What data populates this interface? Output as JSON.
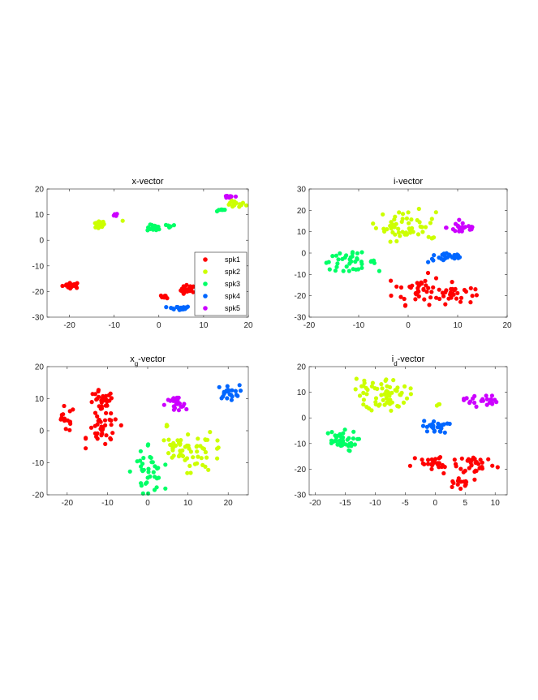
{
  "colors": {
    "spk1": "#ff0000",
    "spk2": "#ccff00",
    "spk3": "#00ff66",
    "spk4": "#0066ff",
    "spk5": "#cc00ff"
  },
  "chart_data": [
    {
      "type": "scatter",
      "title": "x-vector",
      "xlim": [
        -25,
        20
      ],
      "ylim": [
        -30,
        20
      ],
      "xticks": [
        -20,
        -10,
        0,
        10,
        20
      ],
      "yticks": [
        -30,
        -20,
        -10,
        0,
        10,
        20
      ],
      "grid": false,
      "legend": {
        "placement": "bottom-right",
        "entries": [
          "spk1",
          "spk2",
          "spk3",
          "spk4",
          "spk5"
        ]
      },
      "series": [
        {
          "name": "spk1",
          "clusters": [
            {
              "cx": -19.5,
              "cy": -17.5,
              "sx": 1.0,
              "sy": 0.6,
              "n": 22
            },
            {
              "cx": 6.5,
              "cy": -19.5,
              "sx": 0.8,
              "sy": 1.0,
              "n": 22
            },
            {
              "cx": 1.5,
              "cy": -22,
              "sx": 0.5,
              "sy": 0.3,
              "n": 10
            }
          ]
        },
        {
          "name": "spk2",
          "clusters": [
            {
              "cx": -13.5,
              "cy": 6,
              "sx": 0.7,
              "sy": 0.8,
              "n": 18
            },
            {
              "cx": 17,
              "cy": 14,
              "sx": 1.2,
              "sy": 0.7,
              "n": 20
            },
            {
              "cx": -8,
              "cy": 7.5,
              "sx": 0.2,
              "sy": 0.2,
              "n": 1
            }
          ]
        },
        {
          "name": "spk3",
          "clusters": [
            {
              "cx": -1,
              "cy": 4.8,
              "sx": 0.8,
              "sy": 0.6,
              "n": 14
            },
            {
              "cx": 2.5,
              "cy": 5.5,
              "sx": 0.6,
              "sy": 0.4,
              "n": 6
            },
            {
              "cx": 13.8,
              "cy": 12,
              "sx": 0.5,
              "sy": 0.5,
              "n": 8
            }
          ]
        },
        {
          "name": "spk4",
          "clusters": [
            {
              "cx": 4.5,
              "cy": -26.5,
              "sx": 1.3,
              "sy": 0.4,
              "n": 24
            }
          ]
        },
        {
          "name": "spk5",
          "clusters": [
            {
              "cx": 16,
              "cy": 17,
              "sx": 1.0,
              "sy": 0.3,
              "n": 10
            },
            {
              "cx": -9.5,
              "cy": 10,
              "sx": 0.4,
              "sy": 0.4,
              "n": 4
            }
          ]
        }
      ]
    },
    {
      "type": "scatter",
      "title": "i-vector",
      "xlim": [
        -20,
        20
      ],
      "ylim": [
        -30,
        30
      ],
      "xticks": [
        -20,
        -10,
        0,
        10,
        20
      ],
      "yticks": [
        -30,
        -20,
        -10,
        0,
        10,
        20,
        30
      ],
      "grid": false,
      "series": [
        {
          "name": "spk1",
          "clusters": [
            {
              "cx": 2,
              "cy": -17,
              "sx": 2.5,
              "sy": 3.5,
              "n": 40
            },
            {
              "cx": 9,
              "cy": -19,
              "sx": 2.2,
              "sy": 2.5,
              "n": 30
            }
          ]
        },
        {
          "name": "spk2",
          "clusters": [
            {
              "cx": -0.5,
              "cy": 13,
              "sx": 3.0,
              "sy": 3.5,
              "n": 50
            },
            {
              "cx": 5,
              "cy": 7,
              "sx": 0.5,
              "sy": 0.4,
              "n": 4
            }
          ]
        },
        {
          "name": "spk3",
          "clusters": [
            {
              "cx": -12,
              "cy": -4,
              "sx": 2.8,
              "sy": 2.0,
              "n": 40
            }
          ]
        },
        {
          "name": "spk4",
          "clusters": [
            {
              "cx": 8,
              "cy": -2,
              "sx": 2.0,
              "sy": 1.2,
              "n": 25
            }
          ]
        },
        {
          "name": "spk5",
          "clusters": [
            {
              "cx": 11,
              "cy": 12,
              "sx": 1.6,
              "sy": 1.6,
              "n": 25
            }
          ]
        }
      ]
    },
    {
      "type": "scatter",
      "title": "x",
      "title_subscript": "g",
      "title_suffix": "-vector",
      "xlim": [
        -25,
        25
      ],
      "ylim": [
        -20,
        20
      ],
      "xticks": [
        -20,
        -10,
        0,
        10,
        20
      ],
      "yticks": [
        -20,
        -10,
        0,
        10,
        20
      ],
      "grid": false,
      "series": [
        {
          "name": "spk1",
          "clusters": [
            {
              "cx": -20.5,
              "cy": 3.5,
              "sx": 1.2,
              "sy": 2.0,
              "n": 14
            },
            {
              "cx": -11.5,
              "cy": 8.5,
              "sx": 1.6,
              "sy": 2.0,
              "n": 30
            },
            {
              "cx": -11,
              "cy": 0,
              "sx": 2.0,
              "sy": 2.5,
              "n": 35
            }
          ]
        },
        {
          "name": "spk2",
          "clusters": [
            {
              "cx": 8,
              "cy": -5,
              "sx": 1.8,
              "sy": 2.0,
              "n": 30
            },
            {
              "cx": 14,
              "cy": -7,
              "sx": 2.5,
              "sy": 3.0,
              "n": 30
            },
            {
              "cx": 4.5,
              "cy": 1.5,
              "sx": 0.5,
              "sy": 0.3,
              "n": 3
            }
          ]
        },
        {
          "name": "spk3",
          "clusters": [
            {
              "cx": 0,
              "cy": -13,
              "sx": 2.0,
              "sy": 3.0,
              "n": 35
            },
            {
              "cx": 0,
              "cy": -4.5,
              "sx": 0.2,
              "sy": 0.3,
              "n": 2
            }
          ]
        },
        {
          "name": "spk4",
          "clusters": [
            {
              "cx": 20,
              "cy": 12,
              "sx": 1.4,
              "sy": 1.1,
              "n": 22
            }
          ]
        },
        {
          "name": "spk5",
          "clusters": [
            {
              "cx": 7,
              "cy": 8,
              "sx": 1.4,
              "sy": 1.4,
              "n": 24
            }
          ]
        }
      ]
    },
    {
      "type": "scatter",
      "title": "i",
      "title_subscript": "d",
      "title_suffix": "-vector",
      "xlim": [
        -21,
        12
      ],
      "ylim": [
        -30,
        20
      ],
      "xticks": [
        -20,
        -15,
        -10,
        -5,
        0,
        5,
        10
      ],
      "yticks": [
        -30,
        -20,
        -10,
        0,
        10,
        20
      ],
      "grid": false,
      "series": [
        {
          "name": "spk1",
          "clusters": [
            {
              "cx": 0,
              "cy": -18,
              "sx": 2.0,
              "sy": 2.0,
              "n": 30
            },
            {
              "cx": 7,
              "cy": -18,
              "sx": 1.6,
              "sy": 2.0,
              "n": 30
            },
            {
              "cx": 4.5,
              "cy": -25,
              "sx": 1.4,
              "sy": 1.2,
              "n": 14
            }
          ]
        },
        {
          "name": "spk2",
          "clusters": [
            {
              "cx": -8,
              "cy": 9,
              "sx": 1.8,
              "sy": 3.2,
              "n": 60
            },
            {
              "cx": -13,
              "cy": 12,
              "sx": 1.2,
              "sy": 3.0,
              "n": 8
            },
            {
              "cx": 0.5,
              "cy": 5,
              "sx": 0.2,
              "sy": 0.3,
              "n": 3
            }
          ]
        },
        {
          "name": "spk3",
          "clusters": [
            {
              "cx": -16,
              "cy": -9,
              "sx": 1.5,
              "sy": 2.0,
              "n": 40
            }
          ]
        },
        {
          "name": "spk4",
          "clusters": [
            {
              "cx": 0,
              "cy": -3.5,
              "sx": 1.1,
              "sy": 1.2,
              "n": 24
            }
          ]
        },
        {
          "name": "spk5",
          "clusters": [
            {
              "cx": 7.5,
              "cy": 7,
              "sx": 1.4,
              "sy": 1.2,
              "n": 24
            }
          ]
        }
      ]
    }
  ]
}
